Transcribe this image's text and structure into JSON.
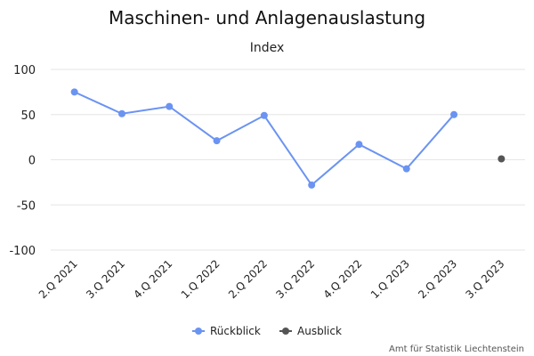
{
  "colors": {
    "rueckblick": "#6b93f2",
    "ausblick": "#555555",
    "grid": "#e6e6e6"
  },
  "chart_data": {
    "type": "line",
    "title": "Maschinen- und Anlagenauslastung",
    "subtitle": "Index",
    "categories": [
      "2.Q 2021",
      "3.Q 2021",
      "4.Q 2021",
      "1.Q 2022",
      "2.Q 2022",
      "3.Q 2022",
      "4.Q 2022",
      "1.Q 2023",
      "2.Q 2023",
      "3.Q 2023"
    ],
    "series": [
      {
        "name": "Rückblick",
        "color": "#6b93f2",
        "values": [
          75,
          51,
          59,
          21,
          49,
          -28,
          17,
          -10,
          50,
          null
        ]
      },
      {
        "name": "Ausblick",
        "color": "#555555",
        "values": [
          null,
          null,
          null,
          null,
          null,
          null,
          null,
          null,
          null,
          1
        ]
      }
    ],
    "yticks": [
      100,
      50,
      0,
      -50,
      -100
    ],
    "ylim": [
      -100,
      100
    ],
    "grid": true,
    "legend_position": "bottom-center",
    "credit": "Amt für Statistik Liechtenstein"
  }
}
